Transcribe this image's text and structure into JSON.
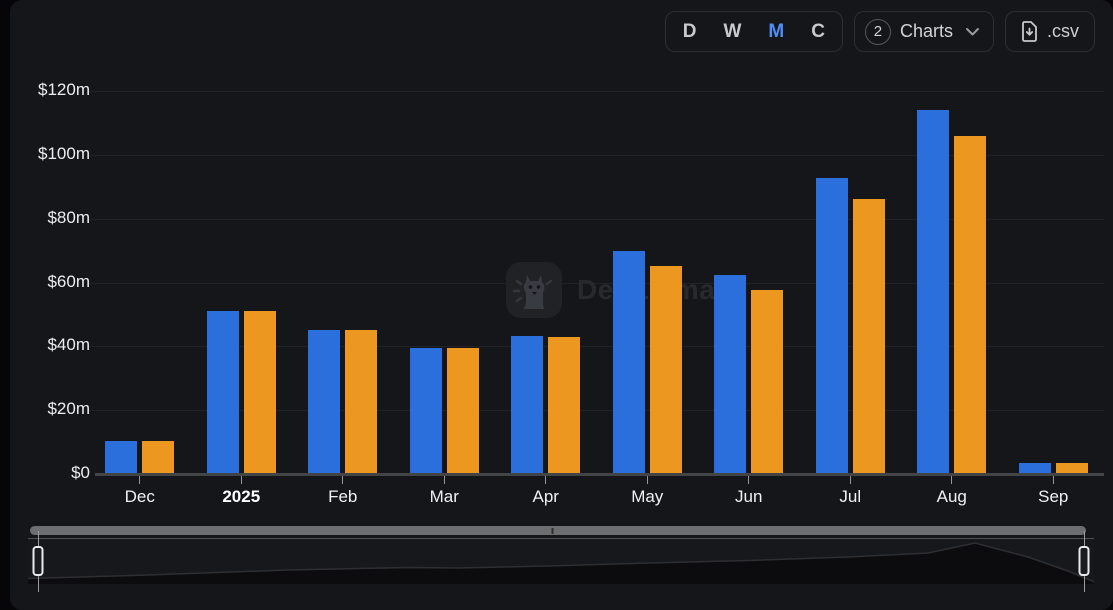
{
  "toolbar": {
    "time_buttons": [
      {
        "label": "D",
        "active": false
      },
      {
        "label": "W",
        "active": false
      },
      {
        "label": "M",
        "active": true
      },
      {
        "label": "C",
        "active": false
      }
    ],
    "charts_button": {
      "count": "2",
      "label": "Charts"
    },
    "csv_button": {
      "label": ".csv"
    }
  },
  "watermark": {
    "text": "DefiLlama"
  },
  "accent_colors": {
    "active_tab": "#4f8ef9",
    "bar_blue": "#2b6fdd",
    "bar_orange": "#ec971f"
  },
  "icons": {
    "chevron": "chevron-down-icon",
    "csv": "file-download-icon",
    "logo": "defillama-llama-icon",
    "grip": "drag-handle-icon"
  },
  "chart_data": {
    "type": "bar",
    "categories": [
      "Dec",
      "2025",
      "Feb",
      "Mar",
      "Apr",
      "May",
      "Jun",
      "Jul",
      "Aug",
      "Sep"
    ],
    "emphasized_category": "2025",
    "series": [
      {
        "name": "series-blue",
        "color": "#2b6fdd",
        "values": [
          10.4,
          51.2,
          45.1,
          39.4,
          43.3,
          69.9,
          62.2,
          92.7,
          113.9,
          3.5
        ]
      },
      {
        "name": "series-orange",
        "color": "#ec971f",
        "values": [
          10.4,
          51.2,
          45.1,
          39.4,
          42.9,
          65.3,
          57.7,
          86.2,
          106.0,
          3.3
        ]
      }
    ],
    "y_axis": {
      "ticks": [
        {
          "label": "$120m",
          "value": 120
        },
        {
          "label": "$100m",
          "value": 100
        },
        {
          "label": "$80m",
          "value": 80
        },
        {
          "label": "$60m",
          "value": 60
        },
        {
          "label": "$40m",
          "value": 40
        },
        {
          "label": "$20m",
          "value": 20
        },
        {
          "label": "$0",
          "value": 0
        }
      ]
    },
    "ylim": [
      0,
      120
    ],
    "unit": "$m",
    "grid": true,
    "legend": "none"
  }
}
